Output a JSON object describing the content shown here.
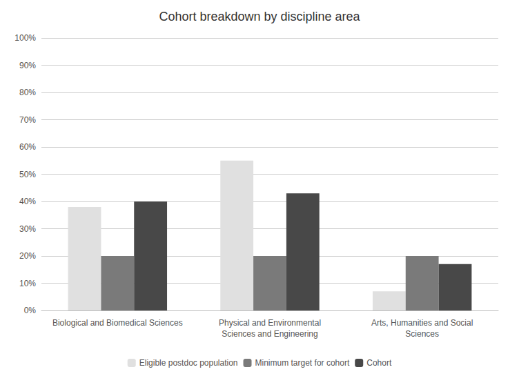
{
  "chart_data": {
    "type": "bar",
    "title": "Cohort breakdown by discipline area",
    "categories": [
      "Biological and Biomedical Sciences",
      "Physical and Environmental\nSciences and Engineering",
      "Arts, Humanities and Social\nSciences"
    ],
    "series": [
      {
        "name": "Eligible postdoc population",
        "color": "#e0e0e0",
        "values": [
          0.38,
          0.55,
          0.07
        ]
      },
      {
        "name": "Minimum target for cohort",
        "color": "#7a7a7a",
        "values": [
          0.2,
          0.2,
          0.2
        ]
      },
      {
        "name": "Cohort",
        "color": "#484848",
        "values": [
          0.4,
          0.43,
          0.17
        ]
      }
    ],
    "ylim": [
      0,
      1.0
    ],
    "yticks": [
      {
        "value": 0.0,
        "label": "0%"
      },
      {
        "value": 0.1,
        "label": "10%"
      },
      {
        "value": 0.2,
        "label": "20%"
      },
      {
        "value": 0.3,
        "label": "30%"
      },
      {
        "value": 0.4,
        "label": "40%"
      },
      {
        "value": 0.5,
        "label": "50%"
      },
      {
        "value": 0.6,
        "label": "60%"
      },
      {
        "value": 0.7,
        "label": "70%"
      },
      {
        "value": 0.8,
        "label": "80%"
      },
      {
        "value": 0.9,
        "label": "90%"
      },
      {
        "value": 1.0,
        "label": "100%"
      }
    ],
    "grid": true,
    "legend": "bottom"
  }
}
